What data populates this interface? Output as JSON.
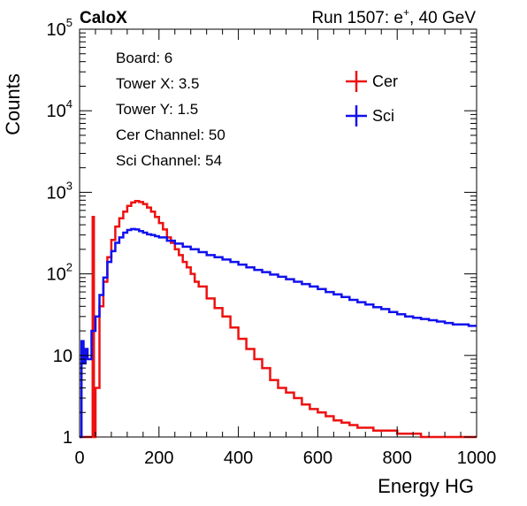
{
  "header": {
    "brand": "CaloX",
    "run_prefix": "Run 1507: e",
    "run_sup": "+",
    "run_suffix": ", 40 GeV"
  },
  "info": [
    "Board: 6",
    "Tower X: 3.5",
    "Tower Y: 1.5",
    "Cer Channel: 50",
    "Sci Channel: 54"
  ],
  "chart_data": {
    "type": "line",
    "xlabel": "Energy HG",
    "ylabel": "Counts",
    "xlim": [
      0,
      1000
    ],
    "ylim": [
      1,
      100000
    ],
    "y_scale": "log",
    "x_ticks": [
      0,
      200,
      400,
      600,
      800,
      1000
    ],
    "y_ticks": [
      {
        "value": 1,
        "base": "1",
        "exp": ""
      },
      {
        "value": 10,
        "base": "10",
        "exp": ""
      },
      {
        "value": 100,
        "base": "10",
        "exp": "2"
      },
      {
        "value": 1000,
        "base": "10",
        "exp": "3"
      },
      {
        "value": 10000,
        "base": "10",
        "exp": "4"
      },
      {
        "value": 100000,
        "base": "10",
        "exp": "5"
      }
    ],
    "legend_position": "top-right",
    "series": [
      {
        "name": "Cer",
        "color": "#ee1111",
        "x": [
          0,
          20,
          30,
          33,
          36,
          40,
          50,
          60,
          70,
          80,
          90,
          100,
          110,
          120,
          130,
          140,
          150,
          160,
          170,
          180,
          190,
          200,
          210,
          220,
          230,
          240,
          250,
          260,
          270,
          280,
          290,
          300,
          320,
          340,
          360,
          380,
          400,
          420,
          440,
          460,
          480,
          500,
          520,
          540,
          560,
          580,
          600,
          620,
          640,
          660,
          680,
          700,
          720,
          740,
          760,
          780,
          800,
          820,
          840,
          860,
          880,
          900,
          950,
          1000
        ],
        "y": [
          1,
          1,
          1,
          500,
          1,
          4,
          40,
          80,
          160,
          260,
          380,
          480,
          580,
          680,
          750,
          780,
          760,
          720,
          650,
          580,
          500,
          420,
          350,
          280,
          240,
          200,
          170,
          140,
          120,
          100,
          80,
          70,
          50,
          38,
          30,
          22,
          16,
          12,
          9,
          7,
          5,
          4,
          3.5,
          3,
          2.5,
          2.2,
          2,
          1.8,
          1.6,
          1.5,
          1.4,
          1.3,
          1.3,
          1.2,
          1.2,
          1.2,
          1.1,
          1.1,
          1.1,
          1,
          1,
          1,
          1,
          1
        ]
      },
      {
        "name": "Sci",
        "color": "#1111ee",
        "x": [
          0,
          5,
          10,
          15,
          20,
          30,
          40,
          50,
          60,
          70,
          80,
          90,
          100,
          110,
          120,
          130,
          140,
          150,
          160,
          170,
          180,
          190,
          200,
          220,
          240,
          260,
          280,
          300,
          320,
          340,
          360,
          380,
          400,
          420,
          440,
          460,
          480,
          500,
          520,
          540,
          560,
          580,
          600,
          620,
          640,
          660,
          680,
          700,
          720,
          740,
          760,
          780,
          800,
          820,
          840,
          860,
          880,
          900,
          920,
          940,
          960,
          980,
          1000
        ],
        "y": [
          1,
          15,
          8,
          12,
          9,
          20,
          30,
          55,
          90,
          140,
          190,
          240,
          280,
          320,
          345,
          355,
          350,
          335,
          320,
          305,
          300,
          290,
          280,
          255,
          235,
          215,
          200,
          185,
          170,
          160,
          150,
          140,
          130,
          120,
          112,
          105,
          98,
          92,
          86,
          80,
          75,
          70,
          65,
          60,
          56,
          52,
          48,
          45,
          42,
          39,
          37,
          34,
          32,
          30,
          29,
          28,
          27,
          26,
          25,
          24,
          24,
          23,
          23
        ]
      }
    ]
  }
}
